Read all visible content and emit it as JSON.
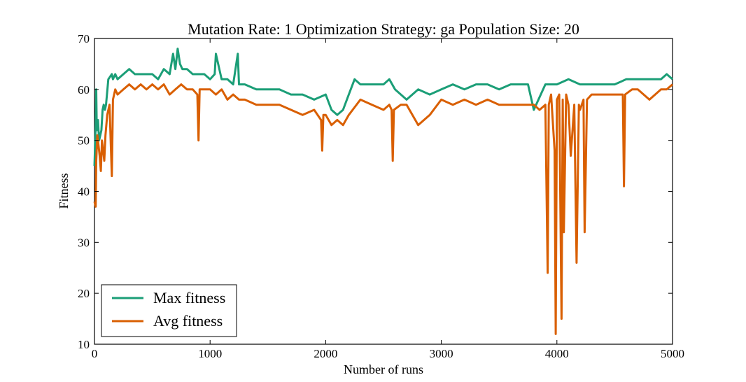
{
  "chart_data": {
    "type": "line",
    "title": "Mutation Rate: 1 Optimization Strategy: ga Population Size: 20",
    "xlabel": "Number of runs",
    "ylabel": "Fitness",
    "xlim": [
      0,
      5000
    ],
    "ylim": [
      10,
      70
    ],
    "xticks": [
      0,
      1000,
      2000,
      3000,
      4000,
      5000
    ],
    "yticks": [
      10,
      20,
      30,
      40,
      50,
      60,
      70
    ],
    "grid": false,
    "legend": "lower-left",
    "series": [
      {
        "name": "Max fitness",
        "color": "#1b9e77",
        "x": [
          0,
          10,
          15,
          20,
          30,
          40,
          50,
          60,
          70,
          80,
          90,
          100,
          120,
          150,
          160,
          180,
          200,
          250,
          300,
          350,
          400,
          450,
          500,
          550,
          600,
          650,
          680,
          700,
          720,
          740,
          760,
          800,
          850,
          900,
          950,
          1000,
          1040,
          1050,
          1100,
          1150,
          1200,
          1240,
          1250,
          1300,
          1400,
          1500,
          1600,
          1700,
          1800,
          1900,
          2000,
          2050,
          2100,
          2150,
          2200,
          2250,
          2300,
          2400,
          2500,
          2550,
          2600,
          2700,
          2800,
          2900,
          3000,
          3100,
          3200,
          3300,
          3400,
          3500,
          3600,
          3700,
          3750,
          3800,
          3900,
          4000,
          4100,
          4200,
          4300,
          4400,
          4500,
          4600,
          4700,
          4800,
          4900,
          4950,
          5000
        ],
        "y": [
          45,
          53,
          60,
          52,
          54,
          50,
          51,
          52,
          56,
          57,
          56,
          57,
          62,
          63,
          62,
          63,
          62,
          63,
          64,
          63,
          63,
          63,
          63,
          62,
          64,
          63,
          67,
          64,
          68,
          65,
          64,
          64,
          63,
          63,
          63,
          62,
          63,
          67,
          62,
          62,
          61,
          67,
          61,
          61,
          60,
          60,
          60,
          59,
          59,
          58,
          59,
          56,
          55,
          56,
          59,
          62,
          61,
          61,
          61,
          62,
          60,
          58,
          60,
          59,
          60,
          61,
          60,
          61,
          61,
          60,
          61,
          61,
          61,
          56,
          61,
          61,
          62,
          61,
          61,
          61,
          61,
          62,
          62,
          62,
          62,
          63,
          62
        ]
      },
      {
        "name": "Avg fitness",
        "color": "#d95f02",
        "x": [
          0,
          10,
          15,
          25,
          35,
          45,
          55,
          65,
          75,
          85,
          95,
          110,
          130,
          150,
          160,
          180,
          200,
          250,
          300,
          350,
          400,
          450,
          500,
          550,
          600,
          650,
          700,
          750,
          800,
          850,
          890,
          900,
          910,
          950,
          1000,
          1050,
          1100,
          1150,
          1200,
          1250,
          1300,
          1400,
          1500,
          1600,
          1700,
          1800,
          1900,
          1960,
          1970,
          1980,
          2000,
          2050,
          2100,
          2150,
          2200,
          2300,
          2400,
          2500,
          2550,
          2570,
          2580,
          2590,
          2650,
          2700,
          2800,
          2900,
          3000,
          3100,
          3200,
          3300,
          3400,
          3500,
          3600,
          3700,
          3800,
          3850,
          3900,
          3920,
          3930,
          3950,
          3980,
          3990,
          4000,
          4020,
          4040,
          4050,
          4060,
          4080,
          4100,
          4120,
          4150,
          4170,
          4190,
          4200,
          4230,
          4240,
          4260,
          4300,
          4400,
          4500,
          4570,
          4580,
          4590,
          4650,
          4700,
          4800,
          4850,
          4900,
          4950,
          5000
        ],
        "y": [
          38,
          37,
          46,
          51,
          49,
          47,
          44,
          50,
          48,
          46,
          51,
          55,
          57,
          43,
          58,
          60,
          59,
          60,
          61,
          60,
          61,
          60,
          61,
          60,
          61,
          59,
          60,
          61,
          60,
          60,
          59,
          50,
          60,
          60,
          60,
          59,
          60,
          58,
          59,
          58,
          58,
          57,
          57,
          57,
          56,
          55,
          56,
          54,
          48,
          55,
          55,
          53,
          54,
          53,
          55,
          58,
          57,
          56,
          57,
          56,
          46,
          56,
          57,
          57,
          53,
          55,
          58,
          57,
          58,
          57,
          58,
          57,
          57,
          57,
          57,
          56,
          57,
          24,
          57,
          59,
          48,
          12,
          58,
          59,
          15,
          58,
          32,
          59,
          57,
          47,
          57,
          26,
          57,
          56,
          58,
          32,
          58,
          59,
          59,
          59,
          59,
          41,
          59,
          60,
          60,
          58,
          59,
          60,
          60,
          61
        ]
      }
    ]
  }
}
